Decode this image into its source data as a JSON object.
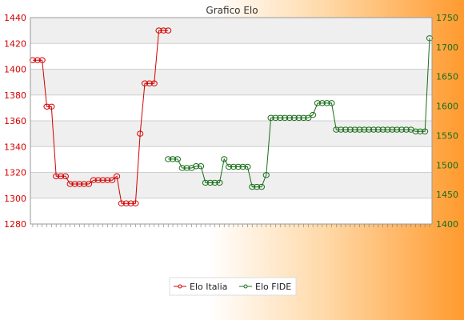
{
  "chart_data": {
    "type": "line",
    "title": "Grafico Elo",
    "xlabel": "",
    "ylabel": "",
    "y_left": {
      "min": 1280,
      "max": 1440,
      "step": 20,
      "ticks": [
        1280,
        1300,
        1320,
        1340,
        1360,
        1380,
        1400,
        1420,
        1440
      ]
    },
    "y_right": {
      "min": 1400,
      "max": 1750,
      "step": 50,
      "ticks": [
        1400,
        1450,
        1500,
        1550,
        1600,
        1650,
        1700,
        1750
      ]
    },
    "x_count": 86,
    "legend_position": "bottom",
    "colors": {
      "italia": "#d40000",
      "fide": "#1a6e1a",
      "band": "#efefef",
      "grid": "#cfcfcf"
    },
    "series": [
      {
        "name": "Elo Italia",
        "axis": "left",
        "points": [
          [
            0,
            1407
          ],
          [
            1,
            1407
          ],
          [
            2,
            1407
          ],
          [
            3,
            1371
          ],
          [
            4,
            1371
          ],
          [
            5,
            1317
          ],
          [
            6,
            1317
          ],
          [
            7,
            1317
          ],
          [
            8,
            1311
          ],
          [
            9,
            1311
          ],
          [
            10,
            1311
          ],
          [
            11,
            1311
          ],
          [
            12,
            1311
          ],
          [
            13,
            1314
          ],
          [
            14,
            1314
          ],
          [
            15,
            1314
          ],
          [
            16,
            1314
          ],
          [
            17,
            1314
          ],
          [
            18,
            1317
          ],
          [
            19,
            1296
          ],
          [
            20,
            1296
          ],
          [
            21,
            1296
          ],
          [
            22,
            1296
          ],
          [
            23,
            1350
          ],
          [
            24,
            1389
          ],
          [
            25,
            1389
          ],
          [
            26,
            1389
          ],
          [
            27,
            1430
          ],
          [
            28,
            1430
          ],
          [
            29,
            1430
          ]
        ]
      },
      {
        "name": "Elo FIDE",
        "axis": "right",
        "points": [
          [
            29,
            1510
          ],
          [
            30,
            1510
          ],
          [
            31,
            1510
          ],
          [
            32,
            1495
          ],
          [
            33,
            1495
          ],
          [
            34,
            1495
          ],
          [
            35,
            1498
          ],
          [
            36,
            1498
          ],
          [
            37,
            1470
          ],
          [
            38,
            1470
          ],
          [
            39,
            1470
          ],
          [
            40,
            1470
          ],
          [
            41,
            1510
          ],
          [
            42,
            1497
          ],
          [
            43,
            1497
          ],
          [
            44,
            1497
          ],
          [
            45,
            1497
          ],
          [
            46,
            1497
          ],
          [
            47,
            1463
          ],
          [
            48,
            1463
          ],
          [
            49,
            1463
          ],
          [
            50,
            1483
          ],
          [
            51,
            1580
          ],
          [
            52,
            1580
          ],
          [
            53,
            1580
          ],
          [
            54,
            1580
          ],
          [
            55,
            1580
          ],
          [
            56,
            1580
          ],
          [
            57,
            1580
          ],
          [
            58,
            1580
          ],
          [
            59,
            1580
          ],
          [
            60,
            1585
          ],
          [
            61,
            1605
          ],
          [
            62,
            1605
          ],
          [
            63,
            1605
          ],
          [
            64,
            1605
          ],
          [
            65,
            1560
          ],
          [
            66,
            1560
          ],
          [
            67,
            1560
          ],
          [
            68,
            1560
          ],
          [
            69,
            1560
          ],
          [
            70,
            1560
          ],
          [
            71,
            1560
          ],
          [
            72,
            1560
          ],
          [
            73,
            1560
          ],
          [
            74,
            1560
          ],
          [
            75,
            1560
          ],
          [
            76,
            1560
          ],
          [
            77,
            1560
          ],
          [
            78,
            1560
          ],
          [
            79,
            1560
          ],
          [
            80,
            1560
          ],
          [
            81,
            1560
          ],
          [
            82,
            1557
          ],
          [
            83,
            1557
          ],
          [
            84,
            1557
          ],
          [
            85,
            1715
          ]
        ]
      }
    ]
  }
}
